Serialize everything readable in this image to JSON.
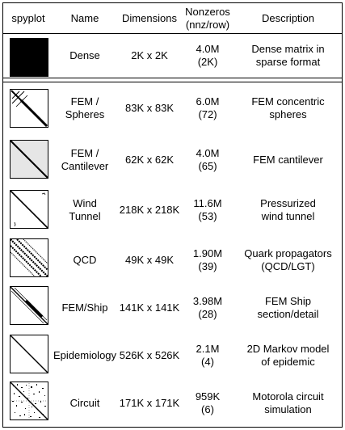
{
  "header": {
    "spyplot": "spyplot",
    "name": "Name",
    "dimensions": "Dimensions",
    "nonzeros": "Nonzeros\n(nnz/row)",
    "description": "Description"
  },
  "rows": [
    {
      "name": "Dense",
      "dimensions": "2K x 2K",
      "nonzeros": "4.0M\n(2K)",
      "description": "Dense matrix in\nsparse format",
      "spy_icon": "dense-spy-icon"
    },
    {
      "name": "FEM /\nSpheres",
      "dimensions": "83K x 83K",
      "nonzeros": "6.0M\n(72)",
      "description": "FEM concentric\nspheres",
      "spy_icon": "fem-spheres-spy-icon"
    },
    {
      "name": "FEM /\nCantilever",
      "dimensions": "62K x 62K",
      "nonzeros": "4.0M\n(65)",
      "description": "FEM cantilever",
      "spy_icon": "fem-cantilever-spy-icon"
    },
    {
      "name": "Wind\nTunnel",
      "dimensions": "218K x 218K",
      "nonzeros": "11.6M\n(53)",
      "description": "Pressurized\nwind tunnel",
      "spy_icon": "wind-tunnel-spy-icon"
    },
    {
      "name": "QCD",
      "dimensions": "49K x 49K",
      "nonzeros": "1.90M\n(39)",
      "description": "Quark propagators\n(QCD/LGT)",
      "spy_icon": "qcd-spy-icon"
    },
    {
      "name": "FEM/Ship",
      "dimensions": "141K x 141K",
      "nonzeros": "3.98M\n(28)",
      "description": "FEM Ship\nsection/detail",
      "spy_icon": "fem-ship-spy-icon"
    },
    {
      "name": "Epidemiology",
      "dimensions": "526K x 526K",
      "nonzeros": "2.1M\n(4)",
      "description": "2D Markov model\nof epidemic",
      "spy_icon": "epidemiology-spy-icon"
    },
    {
      "name": "Circuit",
      "dimensions": "171K x 171K",
      "nonzeros": "959K\n(6)",
      "description": "Motorola circuit\nsimulation",
      "spy_icon": "circuit-spy-icon"
    }
  ]
}
